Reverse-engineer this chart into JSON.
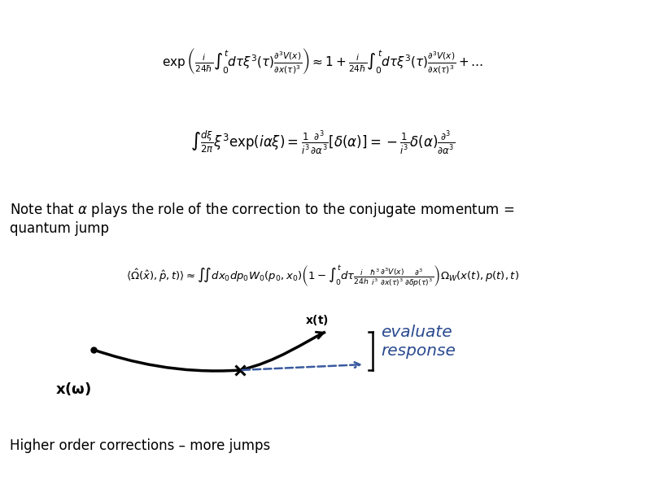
{
  "bg_color": "#ffffff",
  "eq1": "$\\exp\\left(\\frac{i}{24\\hbar}\\int_0^t d\\tau\\xi^3(\\tau)\\frac{\\partial^3 V(x)}{\\partial x(\\tau)^3}\\right) \\approx 1 + \\frac{i}{24\\hbar}\\int_0^t d\\tau\\xi^3(\\tau)\\frac{\\partial^3 V(x)}{\\partial x(\\tau)^3} + \\ldots$",
  "eq2": "$\\int \\frac{d\\xi}{2\\pi}\\xi^3\\exp(i\\alpha\\xi) = \\frac{1}{i^3}\\frac{\\partial^3}{\\partial\\alpha^3}\\left[\\delta(\\alpha)\\right] = -\\frac{1}{i^3}\\delta(\\alpha)\\frac{\\partial^3}{\\partial\\alpha^3}$",
  "note_text": "Note that $\\alpha$ plays the role of the correction to the conjugate momentum =\nquantum jump",
  "eq3": "$\\langle\\hat{\\Omega}(\\hat{x}),\\hat{p},t)\\rangle \\approx \\int\\!\\int dx_0dp_0W_0(p_0,x_0)\\left(1 - \\int_0^t d\\tau\\frac{i}{24h}\\frac{\\hbar^3}{i^3}\\frac{\\partial^3 V(x)}{\\partial x(\\tau)^3}\\frac{\\partial^3}{\\partial\\delta p(\\tau)^3}\\right)\\Omega_W(x(t),p(t),t)$",
  "footer_text": "Higher order corrections – more jumps",
  "handwritten_color": "#2a4a8f",
  "arrow_color": "#000000",
  "dashed_color": "#3a5a9f"
}
